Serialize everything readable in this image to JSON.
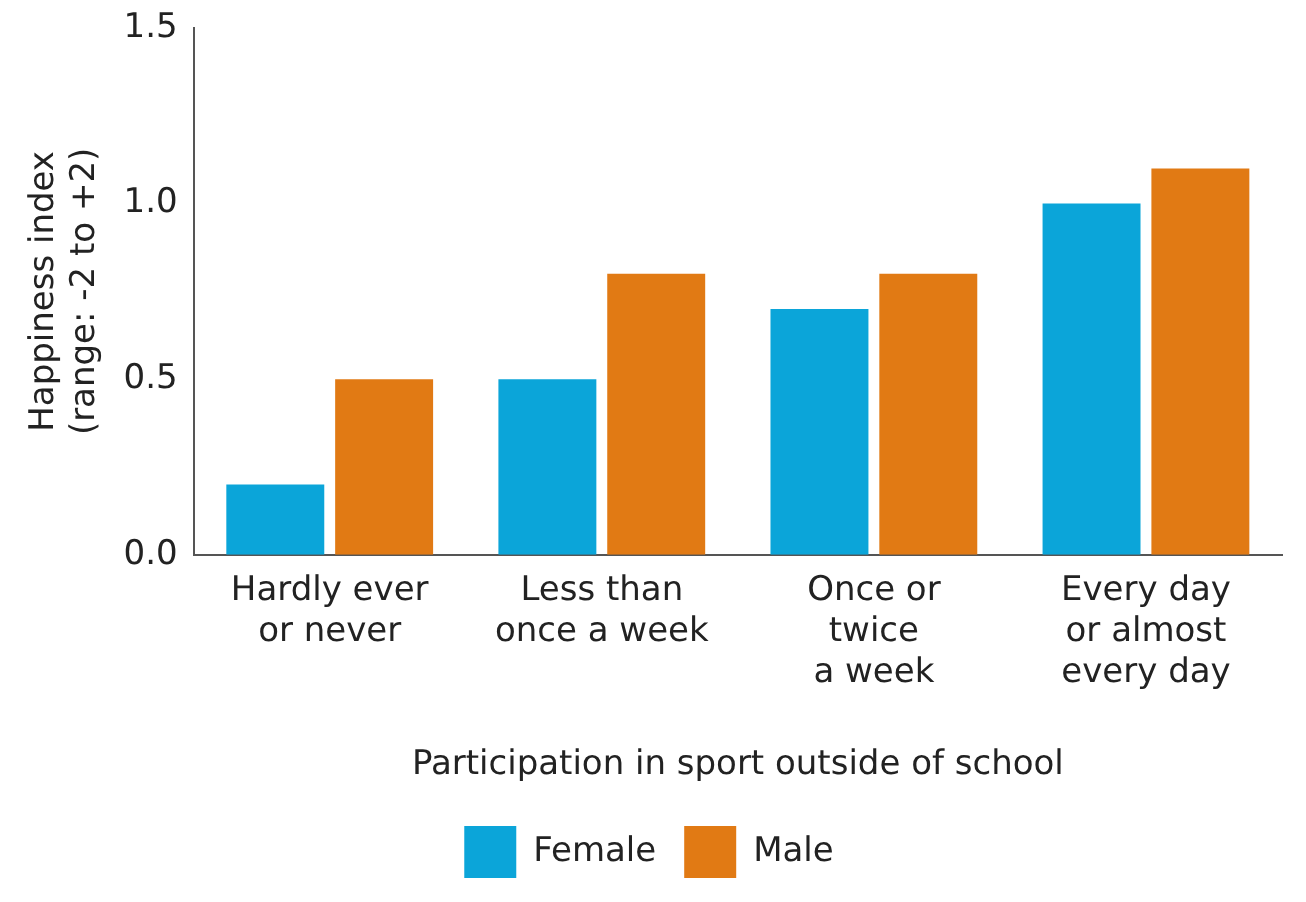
{
  "chart_data": {
    "type": "bar",
    "xlabel": "Participation in sport outside of school",
    "ylabel": "Happiness index\n(range: -2 to +2)",
    "categories": [
      "Hardly ever\nor never",
      "Less than\nonce a week",
      "Once or\ntwice\na week",
      "Every day\nor almost\nevery day"
    ],
    "series": [
      {
        "name": "Female",
        "color": "#0ba5d9",
        "values": [
          0.2,
          0.5,
          0.7,
          1.0
        ]
      },
      {
        "name": "Male",
        "color": "#e17a14",
        "values": [
          0.5,
          0.8,
          0.8,
          1.1
        ]
      }
    ],
    "ylim": [
      0,
      1.5
    ],
    "yticks": [
      {
        "value": 0,
        "label": "0.0"
      },
      {
        "value": 0.5,
        "label": "0.5"
      },
      {
        "value": 1,
        "label": "1.0"
      },
      {
        "value": 1.5,
        "label": "1.5"
      }
    ],
    "grid": false,
    "legend": "bottom"
  }
}
